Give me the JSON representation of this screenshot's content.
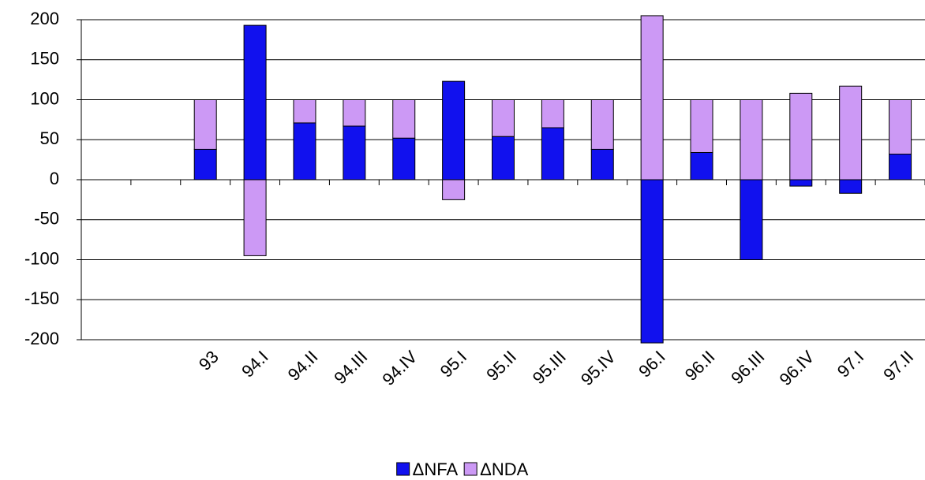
{
  "chart_data": {
    "type": "stacked_bar",
    "categories": [
      null,
      null,
      "93",
      "94.I",
      "94.II",
      "94.III",
      "94.IV",
      "95.I",
      "95.II",
      "95.III",
      "95.IV",
      "96.I",
      "96.II",
      "96.III",
      "96.IV",
      "97.I",
      "97.II"
    ],
    "series": [
      {
        "name": "ΔNFA",
        "color": "#1111ee",
        "values": [
          null,
          null,
          38,
          193,
          71,
          67,
          52,
          123,
          54,
          65,
          38,
          -204,
          34,
          -100,
          -8,
          -17,
          32
        ]
      },
      {
        "name": "ΔNDA",
        "color": "#cc99f5",
        "values": [
          null,
          null,
          62,
          -95,
          29,
          33,
          48,
          -25,
          46,
          35,
          62,
          205,
          66,
          100,
          108,
          117,
          68
        ]
      }
    ],
    "ylim": [
      -200,
      200
    ],
    "yticks": [
      -200,
      -150,
      -100,
      -50,
      0,
      50,
      100,
      150,
      200
    ],
    "grid": true,
    "legend": "bottom"
  }
}
